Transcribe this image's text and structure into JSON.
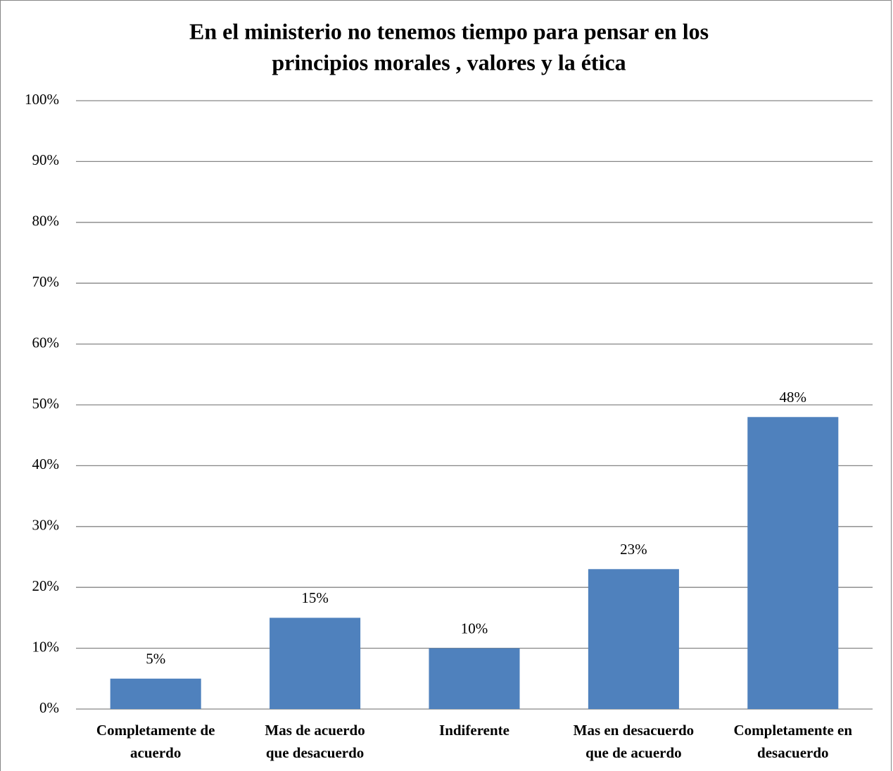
{
  "chart_data": {
    "type": "bar",
    "title": [
      "En el ministerio no tenemos tiempo para pensar en  los",
      "principios  morales , valores y la ética"
    ],
    "categories": [
      [
        "Completamente de",
        "acuerdo"
      ],
      [
        "Mas de acuerdo",
        "que desacuerdo"
      ],
      [
        "Indiferente"
      ],
      [
        "Mas en desacuerdo",
        "que de acuerdo"
      ],
      [
        "Completamente en",
        "desacuerdo"
      ]
    ],
    "values": [
      5,
      15,
      10,
      23,
      48
    ],
    "value_labels": [
      "5%",
      "15%",
      "10%",
      "23%",
      "48%"
    ],
    "color": "#4f81bd",
    "ylim": [
      0,
      100
    ],
    "yticks": [
      {
        "value": 0,
        "label": "0%"
      },
      {
        "value": 10,
        "label": "10%"
      },
      {
        "value": 20,
        "label": "20%"
      },
      {
        "value": 30,
        "label": "30%"
      },
      {
        "value": 40,
        "label": "40%"
      },
      {
        "value": 50,
        "label": "50%"
      },
      {
        "value": 60,
        "label": "60%"
      },
      {
        "value": 70,
        "label": "70%"
      },
      {
        "value": 80,
        "label": "80%"
      },
      {
        "value": 90,
        "label": "90%"
      },
      {
        "value": 100,
        "label": "100%"
      }
    ],
    "grid": true
  }
}
